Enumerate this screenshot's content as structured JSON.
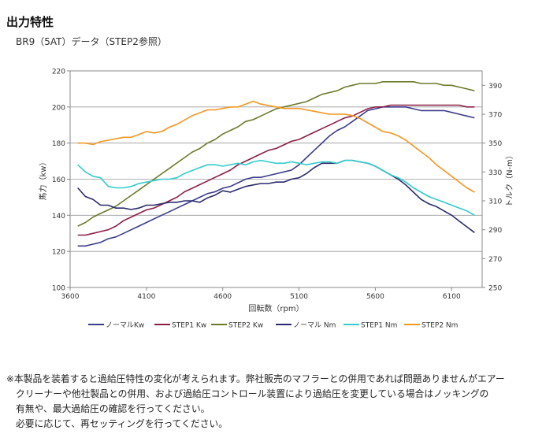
{
  "title": "出力特性",
  "subtitle": "BR9（5AT）データ（STEP2参照）",
  "chart_data": {
    "type": "line",
    "xlabel": "回転数（rpm）",
    "ylabel": "馬力（kw）",
    "y2label": "トルク（N-m）",
    "xlim": [
      3600,
      6300
    ],
    "ylim": [
      100,
      220
    ],
    "y2lim": [
      250,
      400
    ],
    "xticks": [
      3600,
      4100,
      4600,
      5100,
      5600,
      6100
    ],
    "yticks": [
      100,
      120,
      140,
      160,
      180,
      200,
      220
    ],
    "y2ticks": [
      250,
      270,
      290,
      310,
      330,
      350,
      370,
      390
    ],
    "grid": "horizontal",
    "legend_position": "bottom",
    "x": [
      3650,
      3700,
      3750,
      3800,
      3850,
      3900,
      3950,
      4000,
      4050,
      4100,
      4150,
      4200,
      4250,
      4300,
      4350,
      4400,
      4450,
      4500,
      4550,
      4600,
      4650,
      4700,
      4750,
      4800,
      4850,
      4900,
      4950,
      5000,
      5050,
      5100,
      5150,
      5200,
      5250,
      5300,
      5350,
      5400,
      5450,
      5500,
      5550,
      5600,
      5650,
      5700,
      5750,
      5800,
      5850,
      5900,
      5950,
      6000,
      6050,
      6100,
      6150,
      6200,
      6250
    ],
    "series": [
      {
        "name": "ノーマルKw",
        "axis": "left",
        "color": "#3c3c8c",
        "values": [
          123,
          123,
          124,
          125,
          127,
          128,
          130,
          132,
          134,
          136,
          138,
          140,
          142,
          144,
          146,
          148,
          150,
          152,
          153,
          155,
          156,
          158,
          160,
          161,
          161,
          162,
          163,
          164,
          165,
          168,
          172,
          176,
          180,
          184,
          187,
          189,
          192,
          195,
          198,
          199,
          200,
          200,
          200,
          200,
          199,
          198,
          198,
          198,
          198,
          197,
          196,
          195,
          194
        ]
      },
      {
        "name": "STEP1 Kw",
        "axis": "left",
        "color": "#8c1e46",
        "values": [
          129,
          129,
          130,
          131,
          132,
          134,
          137,
          139,
          141,
          143,
          144,
          146,
          148,
          150,
          153,
          155,
          157,
          159,
          161,
          163,
          165,
          168,
          170,
          172,
          174,
          176,
          177,
          179,
          181,
          182,
          184,
          186,
          188,
          190,
          192,
          194,
          195,
          197,
          199,
          200,
          200,
          201,
          201,
          201,
          201,
          201,
          201,
          201,
          201,
          201,
          201,
          200,
          200
        ]
      },
      {
        "name": "STEP2 Kw",
        "axis": "left",
        "color": "#6b7a2a",
        "values": [
          134,
          136,
          139,
          141,
          143,
          145,
          148,
          151,
          154,
          157,
          160,
          163,
          166,
          169,
          172,
          175,
          177,
          180,
          182,
          185,
          187,
          189,
          192,
          193,
          195,
          197,
          199,
          200,
          201,
          202,
          203,
          205,
          207,
          208,
          209,
          211,
          212,
          213,
          213,
          213,
          214,
          214,
          214,
          214,
          214,
          213,
          213,
          213,
          212,
          212,
          211,
          210,
          209
        ]
      },
      {
        "name": "ノーマル Nm",
        "axis": "right",
        "color": "#2a2a6e",
        "values": [
          319,
          313,
          311,
          307,
          307,
          305,
          305,
          304,
          305,
          307,
          307,
          308,
          309,
          309,
          310,
          310,
          309,
          312,
          314,
          317,
          316,
          318,
          320,
          321,
          322,
          322,
          323,
          323,
          325,
          326,
          329,
          333,
          336,
          336,
          336,
          338,
          338,
          337,
          336,
          334,
          331,
          328,
          325,
          321,
          316,
          311,
          308,
          306,
          303,
          300,
          296,
          292,
          288
        ]
      },
      {
        "name": "STEP1 Nm",
        "axis": "right",
        "color": "#33cccc",
        "values": [
          335,
          330,
          327,
          326,
          320,
          319,
          319,
          320,
          322,
          323,
          324,
          325,
          325,
          326,
          329,
          331,
          333,
          335,
          335,
          334,
          335,
          336,
          335,
          337,
          338,
          337,
          336,
          336,
          337,
          336,
          335,
          336,
          337,
          337,
          336,
          338,
          338,
          337,
          336,
          334,
          331,
          328,
          326,
          323,
          319,
          316,
          313,
          311,
          309,
          307,
          305,
          303,
          300
        ]
      },
      {
        "name": "STEP2 Nm",
        "axis": "right",
        "color": "#f5961e",
        "values": [
          350,
          350,
          349,
          351,
          352,
          353,
          354,
          354,
          356,
          358,
          357,
          358,
          361,
          363,
          366,
          369,
          371,
          373,
          373,
          374,
          375,
          375,
          377,
          379,
          377,
          376,
          375,
          374,
          374,
          374,
          373,
          372,
          371,
          370,
          370,
          370,
          369,
          367,
          364,
          361,
          358,
          357,
          355,
          352,
          348,
          344,
          340,
          335,
          331,
          327,
          323,
          319,
          316
        ]
      }
    ]
  },
  "notes": [
    "※本製品を装着すると過給圧特性の変化が考えられます。弊社販売のマフラーとの併用であれば問題ありませんがエアー",
    "クリーナーや他社製品との併用、および過給圧コントロール装置により過給圧を変更している場合はノッキングの",
    "有無や、最大過給圧の確認を行ってください。",
    "必要に応じて、再セッティングを行ってください。"
  ]
}
